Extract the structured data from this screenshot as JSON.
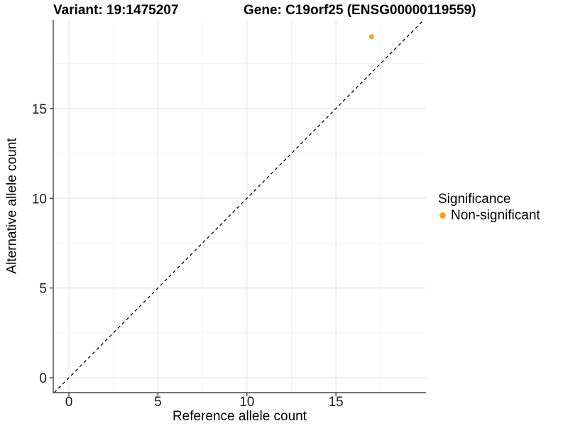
{
  "header": {
    "variant_title": "Variant: 19:1475207",
    "gene_title": "Gene: C19orf25 (ENSG00000119559)"
  },
  "chart_data": {
    "type": "scatter",
    "title_left": "Variant: 19:1475207",
    "title_right": "Gene: C19orf25 (ENSG00000119559)",
    "xlabel": "Reference allele count",
    "ylabel": "Alternative allele count",
    "xlim": [
      -0.88,
      20.06
    ],
    "ylim": [
      -0.83,
      19.94
    ],
    "x_ticks": [
      0,
      5,
      10,
      15
    ],
    "y_ticks": [
      0,
      5,
      10,
      15
    ],
    "x_minor_ticks": [
      2.5,
      7.5,
      12.5,
      17.5
    ],
    "y_minor_ticks": [
      2.5,
      7.5,
      12.5,
      17.5
    ],
    "grid": true,
    "legend_position": "right",
    "series": [
      {
        "name": "Non-significant",
        "color": "#F9A22B",
        "points": [
          {
            "x": 17,
            "y": 19
          }
        ]
      }
    ],
    "identity_line": {
      "type": "y=x",
      "style": "dashed",
      "color": "#000000"
    }
  },
  "legend": {
    "title": "Significance",
    "items": [
      {
        "label": "Non-significant",
        "color": "#F9A22B"
      }
    ]
  },
  "colors": {
    "axis_line": "#464646",
    "tick_mark": "#333333",
    "tick_text": "#1a1a1a",
    "grid_major": "#E6E6E6",
    "grid_minor": "#F2F2F2",
    "background": "#ffffff"
  }
}
